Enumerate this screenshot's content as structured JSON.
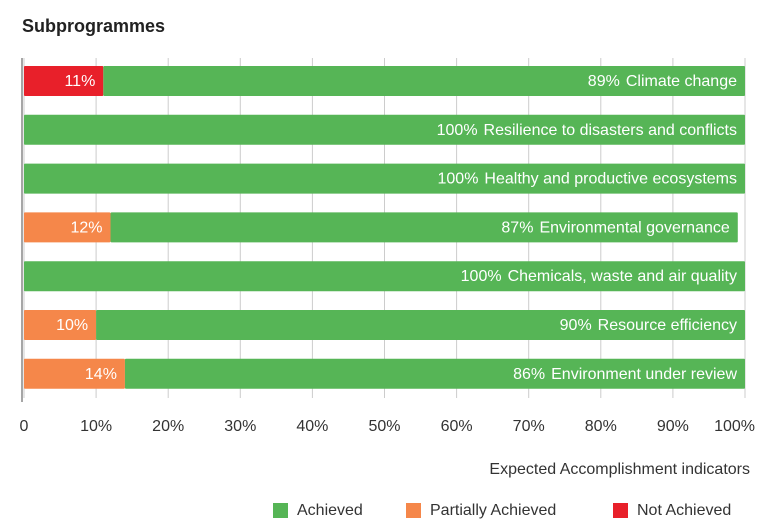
{
  "chart_data": {
    "type": "stacked-barh",
    "title": "Subprogrammes",
    "categories": [
      "Climate change",
      "Resilience to disasters and conflicts",
      "Healthy and productive ecosystems",
      "Environmental governance",
      "Chemicals, waste and air quality",
      "Resource efficiency",
      "Environment under review"
    ],
    "series": [
      {
        "name": "Achieved",
        "color": "#56b556",
        "values": [
          89,
          100,
          100,
          87,
          100,
          90,
          86
        ],
        "value_labels": [
          "89%",
          "100%",
          "100%",
          "87%",
          "100%",
          "90%",
          "86%"
        ]
      },
      {
        "name": "Partially Achieved",
        "color": "#f5874a",
        "values": [
          0,
          0,
          0,
          12,
          0,
          10,
          14
        ],
        "value_labels": [
          null,
          null,
          null,
          "12%",
          null,
          "10%",
          "14%"
        ]
      },
      {
        "name": "Not Achieved",
        "color": "#e8202a",
        "values": [
          11,
          0,
          0,
          0,
          0,
          0,
          0
        ],
        "value_labels": [
          "11%",
          null,
          null,
          null,
          null,
          null,
          null
        ]
      }
    ],
    "xlabel": "Expected Accomplishment indicators",
    "xlim": [
      0,
      100
    ],
    "xticks": [
      0,
      {
        "value": 10,
        "label": "10%"
      },
      {
        "value": 20,
        "label": "20%"
      },
      {
        "value": 30,
        "label": "30%"
      },
      {
        "value": 40,
        "label": "40%"
      },
      {
        "value": 50,
        "label": "50%"
      },
      {
        "value": 60,
        "label": "60%"
      },
      {
        "value": 70,
        "label": "70%"
      },
      {
        "value": 80,
        "label": "80%"
      },
      {
        "value": 90,
        "label": "90%"
      },
      {
        "value": 100,
        "label": "100%"
      }
    ],
    "grid": true,
    "legend": "bottom-right"
  }
}
